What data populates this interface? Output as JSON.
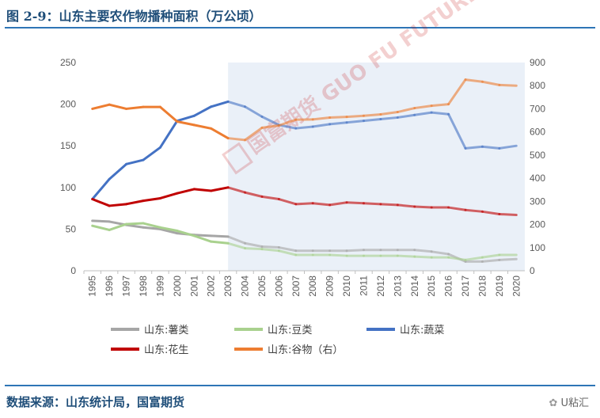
{
  "figure_title": "图 2-9：山东主要农作物播种面积（万公顷）",
  "source": "数据来源：山东统计局，国富期货",
  "brand": "U粘汇",
  "watermark": "国富期货 GUO FU FUTURES",
  "chart_data": {
    "type": "line",
    "categories": [
      "1995",
      "1996",
      "1997",
      "1998",
      "1999",
      "2000",
      "2001",
      "2002",
      "2003",
      "2004",
      "2005",
      "2006",
      "2007",
      "2008",
      "2009",
      "2010",
      "2011",
      "2012",
      "2013",
      "2014",
      "2015",
      "2016",
      "2017",
      "2018",
      "2019",
      "2020"
    ],
    "y_left": {
      "min": 0,
      "max": 250,
      "ticks": [
        0,
        50,
        100,
        150,
        200,
        250
      ]
    },
    "y_right": {
      "min": 0,
      "max": 900,
      "ticks": [
        0,
        100,
        200,
        300,
        400,
        500,
        600,
        700,
        800,
        900
      ]
    },
    "highlight_from": "2003",
    "highlight_to": "2020",
    "series": [
      {
        "name": "山东:薯类",
        "axis": "left",
        "color": "#a6a6a6",
        "values": [
          60,
          59,
          55,
          52,
          50,
          45,
          43,
          42,
          41,
          33,
          29,
          28,
          24,
          24,
          24,
          24,
          25,
          25,
          25,
          25,
          23,
          20,
          11,
          11,
          13,
          14
        ]
      },
      {
        "name": "山东:豆类",
        "axis": "left",
        "color": "#a9d18e",
        "values": [
          54,
          49,
          56,
          57,
          52,
          48,
          42,
          35,
          33,
          27,
          26,
          24,
          19,
          19,
          19,
          18,
          18,
          18,
          18,
          17,
          16,
          16,
          13,
          16,
          19,
          19
        ]
      },
      {
        "name": "山东:蔬菜",
        "axis": "left",
        "color": "#4472c4",
        "values": [
          86,
          110,
          128,
          133,
          148,
          180,
          186,
          197,
          203,
          197,
          185,
          175,
          171,
          173,
          176,
          178,
          180,
          182,
          184,
          187,
          190,
          188,
          147,
          149,
          147,
          150
        ]
      },
      {
        "name": "山东:花生",
        "axis": "left",
        "color": "#c00000",
        "values": [
          86,
          78,
          80,
          84,
          87,
          93,
          98,
          96,
          100,
          94,
          89,
          86,
          80,
          81,
          79,
          82,
          81,
          80,
          79,
          77,
          76,
          76,
          73,
          71,
          68,
          67
        ]
      },
      {
        "name": "山东:谷物（右）",
        "axis": "right",
        "color": "#ed7d31",
        "values": [
          700,
          718,
          700,
          708,
          708,
          645,
          630,
          615,
          573,
          565,
          618,
          628,
          653,
          654,
          662,
          665,
          670,
          676,
          686,
          703,
          713,
          720,
          826,
          817,
          803,
          800
        ]
      }
    ]
  }
}
